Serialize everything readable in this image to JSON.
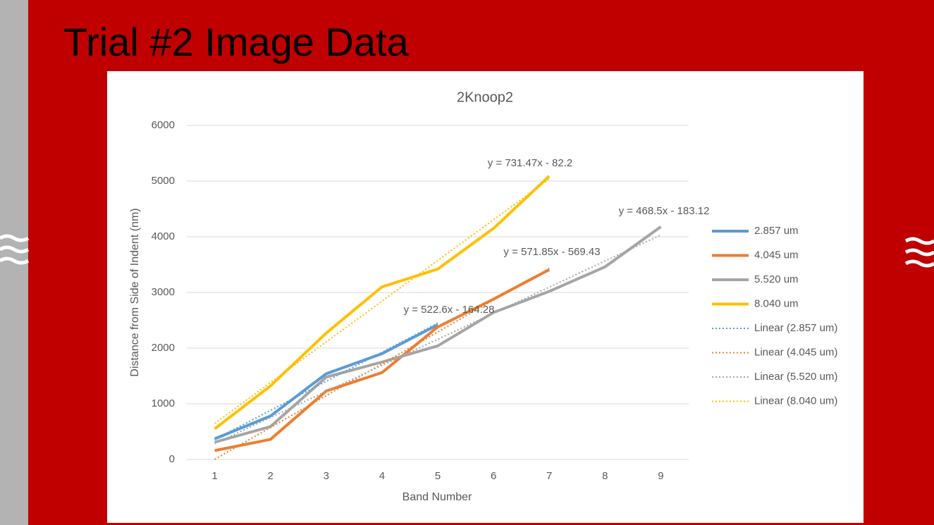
{
  "slide_title": "Trial #2 Image Data",
  "chart_data": {
    "type": "line",
    "title": "2Knoop2",
    "x_label": "Band Number",
    "y_label": "Distance from Side of Indent (nm)",
    "x": [
      1,
      2,
      3,
      4,
      5,
      6,
      7,
      8,
      9
    ],
    "xlim": [
      0.5,
      9.5
    ],
    "xticks": [
      1,
      2,
      3,
      4,
      5,
      6,
      7,
      8,
      9
    ],
    "ylim": [
      0,
      6000
    ],
    "yticks": [
      0,
      1000,
      2000,
      3000,
      4000,
      5000,
      6000
    ],
    "grid": true,
    "legend": "right",
    "series": [
      {
        "name": "2.857 um",
        "color": "#5b9bd5",
        "values": [
          370,
          780,
          1540,
          1900,
          2420,
          null,
          null,
          null,
          null
        ]
      },
      {
        "name": "4.045 um",
        "color": "#ed7d31",
        "values": [
          160,
          360,
          1230,
          1560,
          2380,
          2880,
          3410,
          null,
          null
        ]
      },
      {
        "name": "5.520 um",
        "color": "#a5a5a5",
        "values": [
          310,
          590,
          1480,
          1750,
          2040,
          2640,
          3020,
          3460,
          4180
        ]
      },
      {
        "name": "8.040 um",
        "color": "#ffc000",
        "values": [
          550,
          1320,
          2270,
          3100,
          3420,
          4150,
          5090,
          null,
          null
        ]
      },
      {
        "name": "Linear (2.857 um)",
        "color": "#5b9bd5",
        "dash": true,
        "values": [
          358,
          881,
          1404,
          1926,
          2449,
          null,
          null,
          null,
          null
        ]
      },
      {
        "name": "Linear (4.045 um)",
        "color": "#ed7d31",
        "dash": true,
        "values": [
          2,
          574,
          1146,
          1718,
          2290,
          2862,
          3433,
          null,
          null
        ]
      },
      {
        "name": "Linear (5.520 um)",
        "color": "#a5a5a5",
        "dash": true,
        "values": [
          285,
          754,
          1222,
          1691,
          2159,
          2628,
          3096,
          3565,
          4033
        ]
      },
      {
        "name": "Linear (8.040 um)",
        "color": "#ffc000",
        "dash": true,
        "values": [
          649,
          1381,
          2112,
          2844,
          3575,
          4306,
          5038,
          null,
          null
        ]
      }
    ],
    "annotations": [
      "y = 731.47x - 82.2",
      "y = 468.5x - 183.12",
      "y = 571.85x - 569.43",
      "y = 522.6x - 164.28"
    ]
  }
}
